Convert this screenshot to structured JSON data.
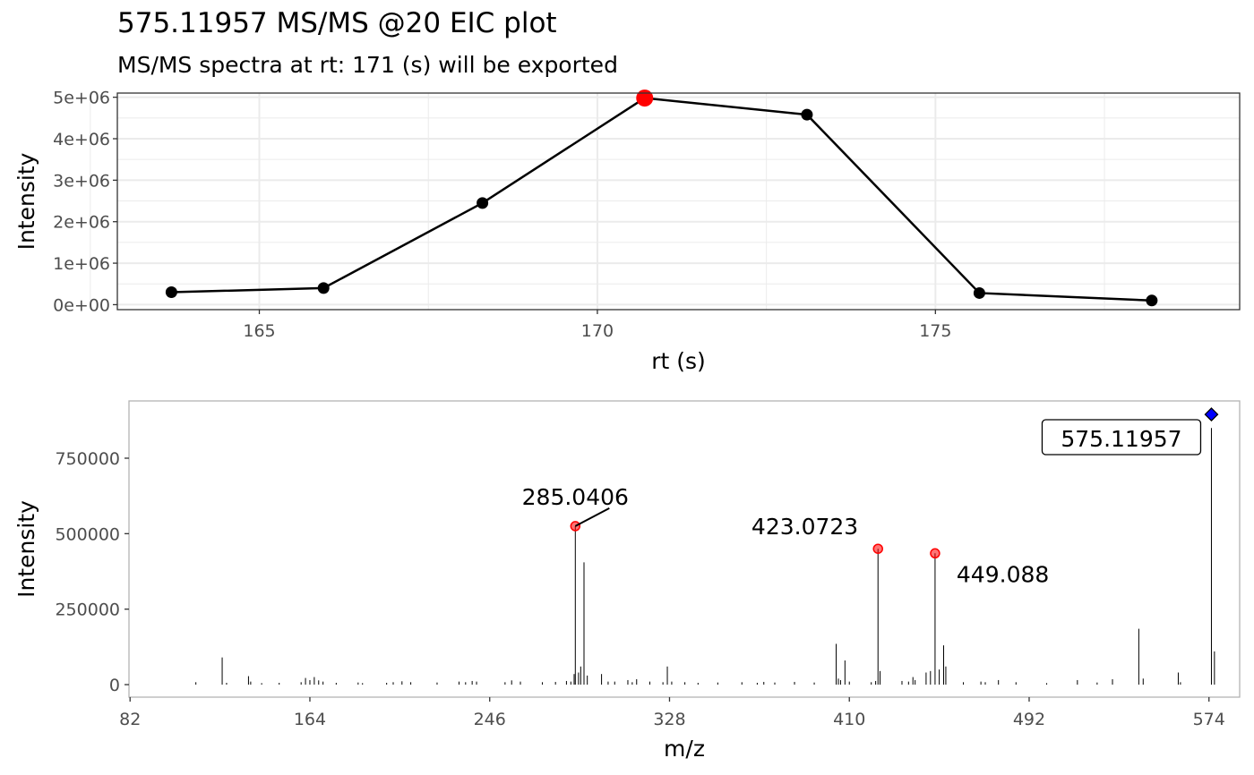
{
  "figure": {
    "title": "575.11957 MS/MS @20 EIC plot",
    "subtitle": "MS/MS spectra at rt: 171 (s) will be exported"
  },
  "colors": {
    "line": "#000000",
    "selected_point": "#ff0000",
    "peak_label_point": "#ff0000",
    "precursor_marker": "#0000ff",
    "grid": "#ebebeb",
    "panel_border": "#333333",
    "bottom_border": "#b3b3b3",
    "tick_text": "#4d4d4d"
  },
  "chart_data": [
    {
      "type": "line",
      "xlabel": "rt (s)",
      "ylabel": "Intensity",
      "xlim": [
        162.9,
        179.5
      ],
      "ylim": [
        -120000,
        5100000
      ],
      "x_ticks": [
        165,
        170,
        175
      ],
      "y_ticks": [
        0,
        1000000,
        2000000,
        3000000,
        4000000,
        5000000
      ],
      "y_tick_labels": [
        "0e+00",
        "1e+06",
        "2e+06",
        "3e+06",
        "4e+06",
        "5e+06"
      ],
      "grid": true,
      "legend": "none",
      "series": [
        {
          "x": [
            163.7,
            165.95,
            168.3,
            170.7,
            173.1,
            175.65,
            178.2
          ],
          "y": [
            300000,
            400000,
            2450000,
            4980000,
            4580000,
            280000,
            100000
          ]
        }
      ],
      "highlight": {
        "x": 170.7,
        "y": 4980000
      }
    },
    {
      "type": "bar",
      "xlabel": "m/z",
      "ylabel": "Intensity",
      "xlim": [
        81.5,
        588
      ],
      "ylim": [
        0,
        890000
      ],
      "x_ticks": [
        82,
        164,
        246,
        328,
        410,
        492,
        574
      ],
      "y_ticks": [
        0,
        250000,
        500000,
        750000
      ],
      "grid": false,
      "legend": "none",
      "peaks": [
        [
          112,
          8000
        ],
        [
          124,
          90000
        ],
        [
          126,
          6000
        ],
        [
          136,
          28000
        ],
        [
          137,
          10000
        ],
        [
          142,
          5000
        ],
        [
          150,
          6000
        ],
        [
          160,
          8000
        ],
        [
          162,
          22000
        ],
        [
          164,
          15000
        ],
        [
          166,
          25000
        ],
        [
          168,
          14000
        ],
        [
          170,
          10000
        ],
        [
          176,
          6000
        ],
        [
          186,
          7000
        ],
        [
          188,
          5000
        ],
        [
          199,
          6000
        ],
        [
          202,
          8000
        ],
        [
          206,
          11000
        ],
        [
          210,
          8000
        ],
        [
          222,
          7000
        ],
        [
          232,
          10000
        ],
        [
          235,
          8000
        ],
        [
          238,
          12000
        ],
        [
          240,
          10000
        ],
        [
          253,
          8000
        ],
        [
          256,
          14000
        ],
        [
          260,
          10000
        ],
        [
          270,
          8000
        ],
        [
          276,
          9000
        ],
        [
          281,
          12000
        ],
        [
          283,
          10000
        ],
        [
          284.5,
          35000
        ],
        [
          285.04,
          525000
        ],
        [
          286.5,
          40000
        ],
        [
          287.5,
          60000
        ],
        [
          289,
          405000
        ],
        [
          290.5,
          30000
        ],
        [
          297,
          35000
        ],
        [
          300,
          10000
        ],
        [
          303,
          10000
        ],
        [
          309,
          15000
        ],
        [
          311,
          8000
        ],
        [
          313,
          18000
        ],
        [
          319,
          10000
        ],
        [
          325,
          8000
        ],
        [
          327,
          60000
        ],
        [
          329,
          10000
        ],
        [
          335,
          8000
        ],
        [
          341,
          6000
        ],
        [
          350,
          7000
        ],
        [
          361,
          8000
        ],
        [
          368,
          6000
        ],
        [
          371,
          9000
        ],
        [
          376,
          7000
        ],
        [
          385,
          9000
        ],
        [
          394,
          7000
        ],
        [
          404,
          135000
        ],
        [
          405,
          20000
        ],
        [
          406,
          15000
        ],
        [
          408,
          80000
        ],
        [
          410,
          10000
        ],
        [
          420,
          8000
        ],
        [
          422,
          12000
        ],
        [
          423.07,
          450000
        ],
        [
          424,
          45000
        ],
        [
          434,
          12000
        ],
        [
          437,
          10000
        ],
        [
          439,
          25000
        ],
        [
          440,
          15000
        ],
        [
          445,
          40000
        ],
        [
          447,
          45000
        ],
        [
          449.09,
          435000
        ],
        [
          451,
          50000
        ],
        [
          453,
          130000
        ],
        [
          454,
          60000
        ],
        [
          462,
          8000
        ],
        [
          470,
          10000
        ],
        [
          472,
          8000
        ],
        [
          478,
          15000
        ],
        [
          486,
          8000
        ],
        [
          500,
          5000
        ],
        [
          514,
          15000
        ],
        [
          523,
          7000
        ],
        [
          530,
          18000
        ],
        [
          542,
          185000
        ],
        [
          544,
          20000
        ],
        [
          560,
          40000
        ],
        [
          561,
          8000
        ],
        [
          575.12,
          850000
        ],
        [
          576.5,
          110000
        ]
      ],
      "labeled_peaks": [
        {
          "mz": 285.0406,
          "intensity": 525000,
          "label": "285.0406"
        },
        {
          "mz": 423.0723,
          "intensity": 450000,
          "label": "423.0723"
        },
        {
          "mz": 449.088,
          "intensity": 435000,
          "label": "449.088"
        }
      ],
      "precursor": {
        "mz": 575.11957,
        "intensity": 895000,
        "label": "575.11957"
      }
    }
  ]
}
